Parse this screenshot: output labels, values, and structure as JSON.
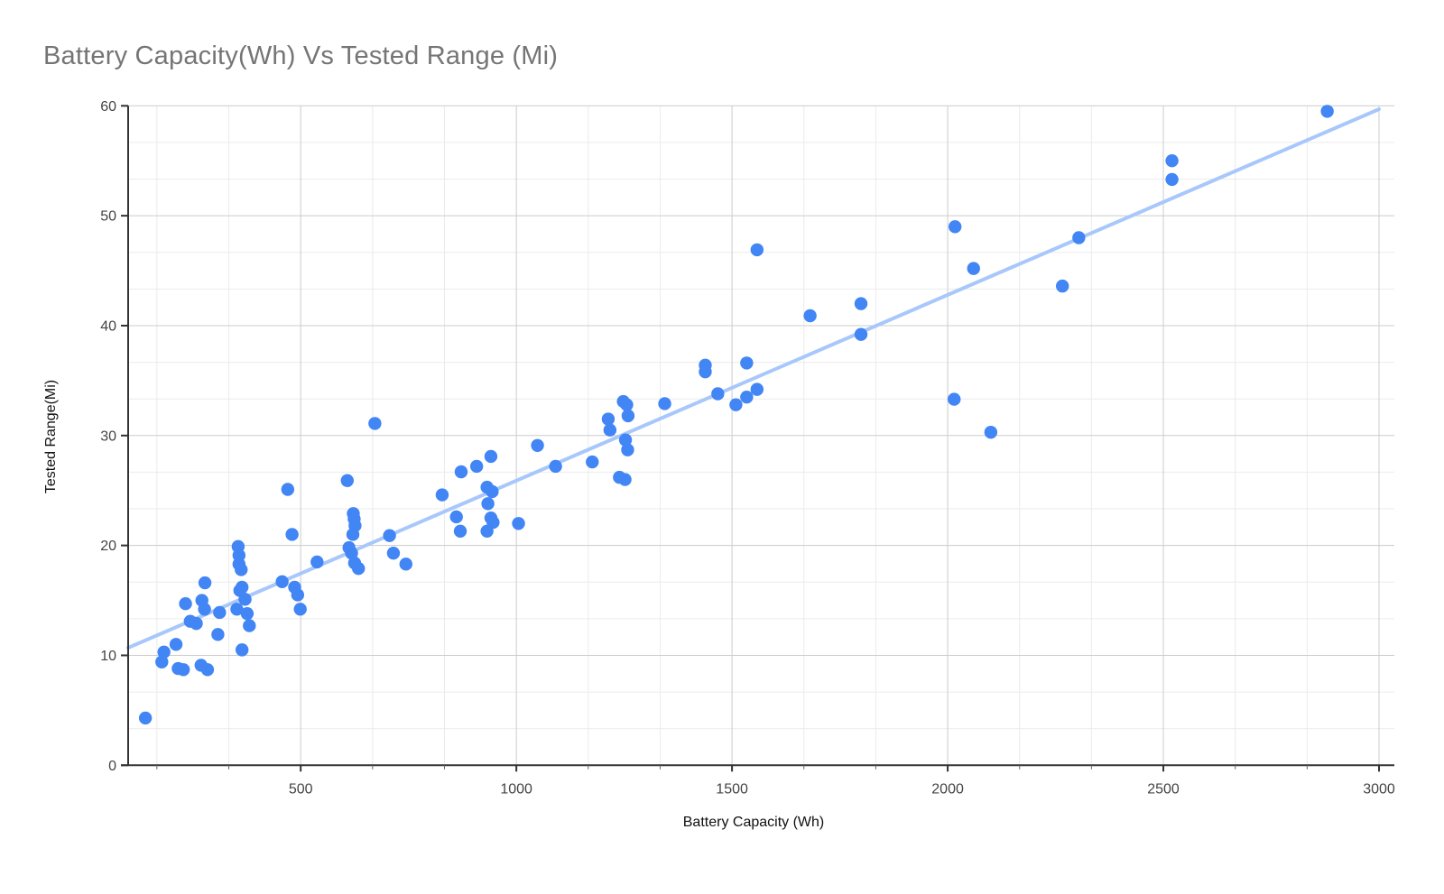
{
  "chart_data": {
    "type": "scatter",
    "title": "Battery Capacity(Wh) Vs Tested Range (Mi)",
    "xlabel": "Battery Capacity (Wh)",
    "ylabel": "Tested Range(Mi)",
    "x_range": [
      100,
      3000
    ],
    "y_range": [
      0,
      60
    ],
    "x_ticks": [
      500,
      1000,
      1500,
      2000,
      2500,
      3000
    ],
    "y_ticks": [
      0,
      10,
      20,
      30,
      40,
      50,
      60
    ],
    "x_minor_step": 166.6667,
    "y_minor_step": 3.3333,
    "grid": true,
    "legend_position": "none",
    "series": [
      {
        "name": "Tested Range(Mi)",
        "points": [
          [
            140,
            4.3
          ],
          [
            178,
            9.4
          ],
          [
            183,
            10.3
          ],
          [
            211,
            11
          ],
          [
            216,
            8.8
          ],
          [
            228,
            8.7
          ],
          [
            233,
            14.7
          ],
          [
            244,
            13.1
          ],
          [
            258,
            12.9
          ],
          [
            269,
            9.1
          ],
          [
            284,
            8.7
          ],
          [
            271,
            15
          ],
          [
            277,
            14.2
          ],
          [
            278,
            16.6
          ],
          [
            308,
            11.9
          ],
          [
            312,
            13.9
          ],
          [
            364,
            10.5
          ],
          [
            352,
            14.2
          ],
          [
            359,
            15.9
          ],
          [
            364,
            16.2
          ],
          [
            371,
            15.1
          ],
          [
            376,
            13.8
          ],
          [
            381,
            12.7
          ],
          [
            357,
            18.3
          ],
          [
            362,
            17.8
          ],
          [
            355,
            19.9
          ],
          [
            357,
            19.1
          ],
          [
            457,
            16.7
          ],
          [
            486,
            16.2
          ],
          [
            493,
            15.5
          ],
          [
            499,
            14.2
          ],
          [
            470,
            25.1
          ],
          [
            480,
            21
          ],
          [
            538,
            18.5
          ],
          [
            608,
            25.9
          ],
          [
            622,
            22.9
          ],
          [
            624,
            22.4
          ],
          [
            626,
            21.8
          ],
          [
            621,
            21
          ],
          [
            612,
            19.8
          ],
          [
            618,
            19.3
          ],
          [
            625,
            18.4
          ],
          [
            634,
            17.9
          ],
          [
            672,
            31.1
          ],
          [
            706,
            20.9
          ],
          [
            715,
            19.3
          ],
          [
            744,
            18.3
          ],
          [
            828,
            24.6
          ],
          [
            861,
            22.6
          ],
          [
            870,
            21.3
          ],
          [
            872,
            26.7
          ],
          [
            908,
            27.2
          ],
          [
            932,
            25.3
          ],
          [
            944,
            24.9
          ],
          [
            934,
            23.8
          ],
          [
            941,
            22.5
          ],
          [
            946,
            22.1
          ],
          [
            932,
            21.3
          ],
          [
            941,
            28.1
          ],
          [
            1005,
            22
          ],
          [
            1049,
            29.1
          ],
          [
            1091,
            27.2
          ],
          [
            1176,
            27.6
          ],
          [
            1213,
            31.5
          ],
          [
            1217,
            30.5
          ],
          [
            1248,
            33.1
          ],
          [
            1256,
            32.8
          ],
          [
            1259,
            31.8
          ],
          [
            1253,
            29.6
          ],
          [
            1258,
            28.7
          ],
          [
            1239,
            26.2
          ],
          [
            1252,
            26
          ],
          [
            1344,
            32.9
          ],
          [
            1438,
            36.4
          ],
          [
            1438,
            35.8
          ],
          [
            1467,
            33.8
          ],
          [
            1509,
            32.8
          ],
          [
            1534,
            33.5
          ],
          [
            1534,
            36.6
          ],
          [
            1558,
            34.2
          ],
          [
            1558,
            46.9
          ],
          [
            1681,
            40.9
          ],
          [
            1799,
            42
          ],
          [
            1799,
            39.2
          ],
          [
            2015,
            33.3
          ],
          [
            2017,
            49
          ],
          [
            2060,
            45.2
          ],
          [
            2100,
            30.3
          ],
          [
            2266,
            43.6
          ],
          [
            2304,
            48
          ],
          [
            2520,
            55
          ],
          [
            2520,
            53.3
          ],
          [
            2880,
            59.5
          ]
        ]
      }
    ],
    "trendline": {
      "kind": "linear",
      "slope": 0.016897,
      "intercept": 9.0,
      "x_start": 100,
      "x_end": 3000
    },
    "colors": {
      "point": "#4285F4",
      "trendline": "#A8C7FA",
      "grid_major": "#cccccc",
      "grid_minor": "#ebebeb",
      "axis": "#333333",
      "tick_label": "#444444",
      "title": "#757575",
      "axis_title": "#111111",
      "background": "#ffffff"
    }
  }
}
